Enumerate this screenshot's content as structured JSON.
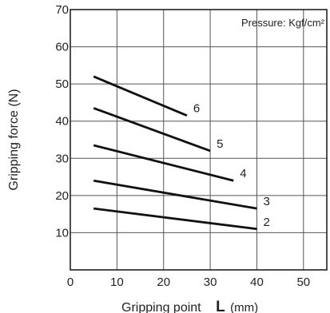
{
  "chart_data": {
    "type": "line",
    "xlabel": "Gripping point",
    "xlabel_symbol": "L",
    "xlabel_unit": "(mm)",
    "ylabel": "Gripping force (N)",
    "annotation": "Pressure: Kgf/cm²",
    "xlim": [
      0,
      55
    ],
    "ylim": [
      0,
      70
    ],
    "x_ticks": [
      "0",
      "10",
      "20",
      "30",
      "40",
      "50"
    ],
    "y_ticks": [
      "10",
      "20",
      "30",
      "40",
      "50",
      "60",
      "70"
    ],
    "grid": true,
    "series": [
      {
        "name": "2",
        "x": [
          5,
          40
        ],
        "y": [
          16.5,
          11
        ]
      },
      {
        "name": "3",
        "x": [
          5,
          40
        ],
        "y": [
          24,
          16.5
        ]
      },
      {
        "name": "4",
        "x": [
          5,
          35
        ],
        "y": [
          33.5,
          24
        ]
      },
      {
        "name": "5",
        "x": [
          5,
          30
        ],
        "y": [
          43.5,
          32
        ]
      },
      {
        "name": "6",
        "x": [
          5,
          25
        ],
        "y": [
          52,
          41.5
        ]
      }
    ]
  }
}
